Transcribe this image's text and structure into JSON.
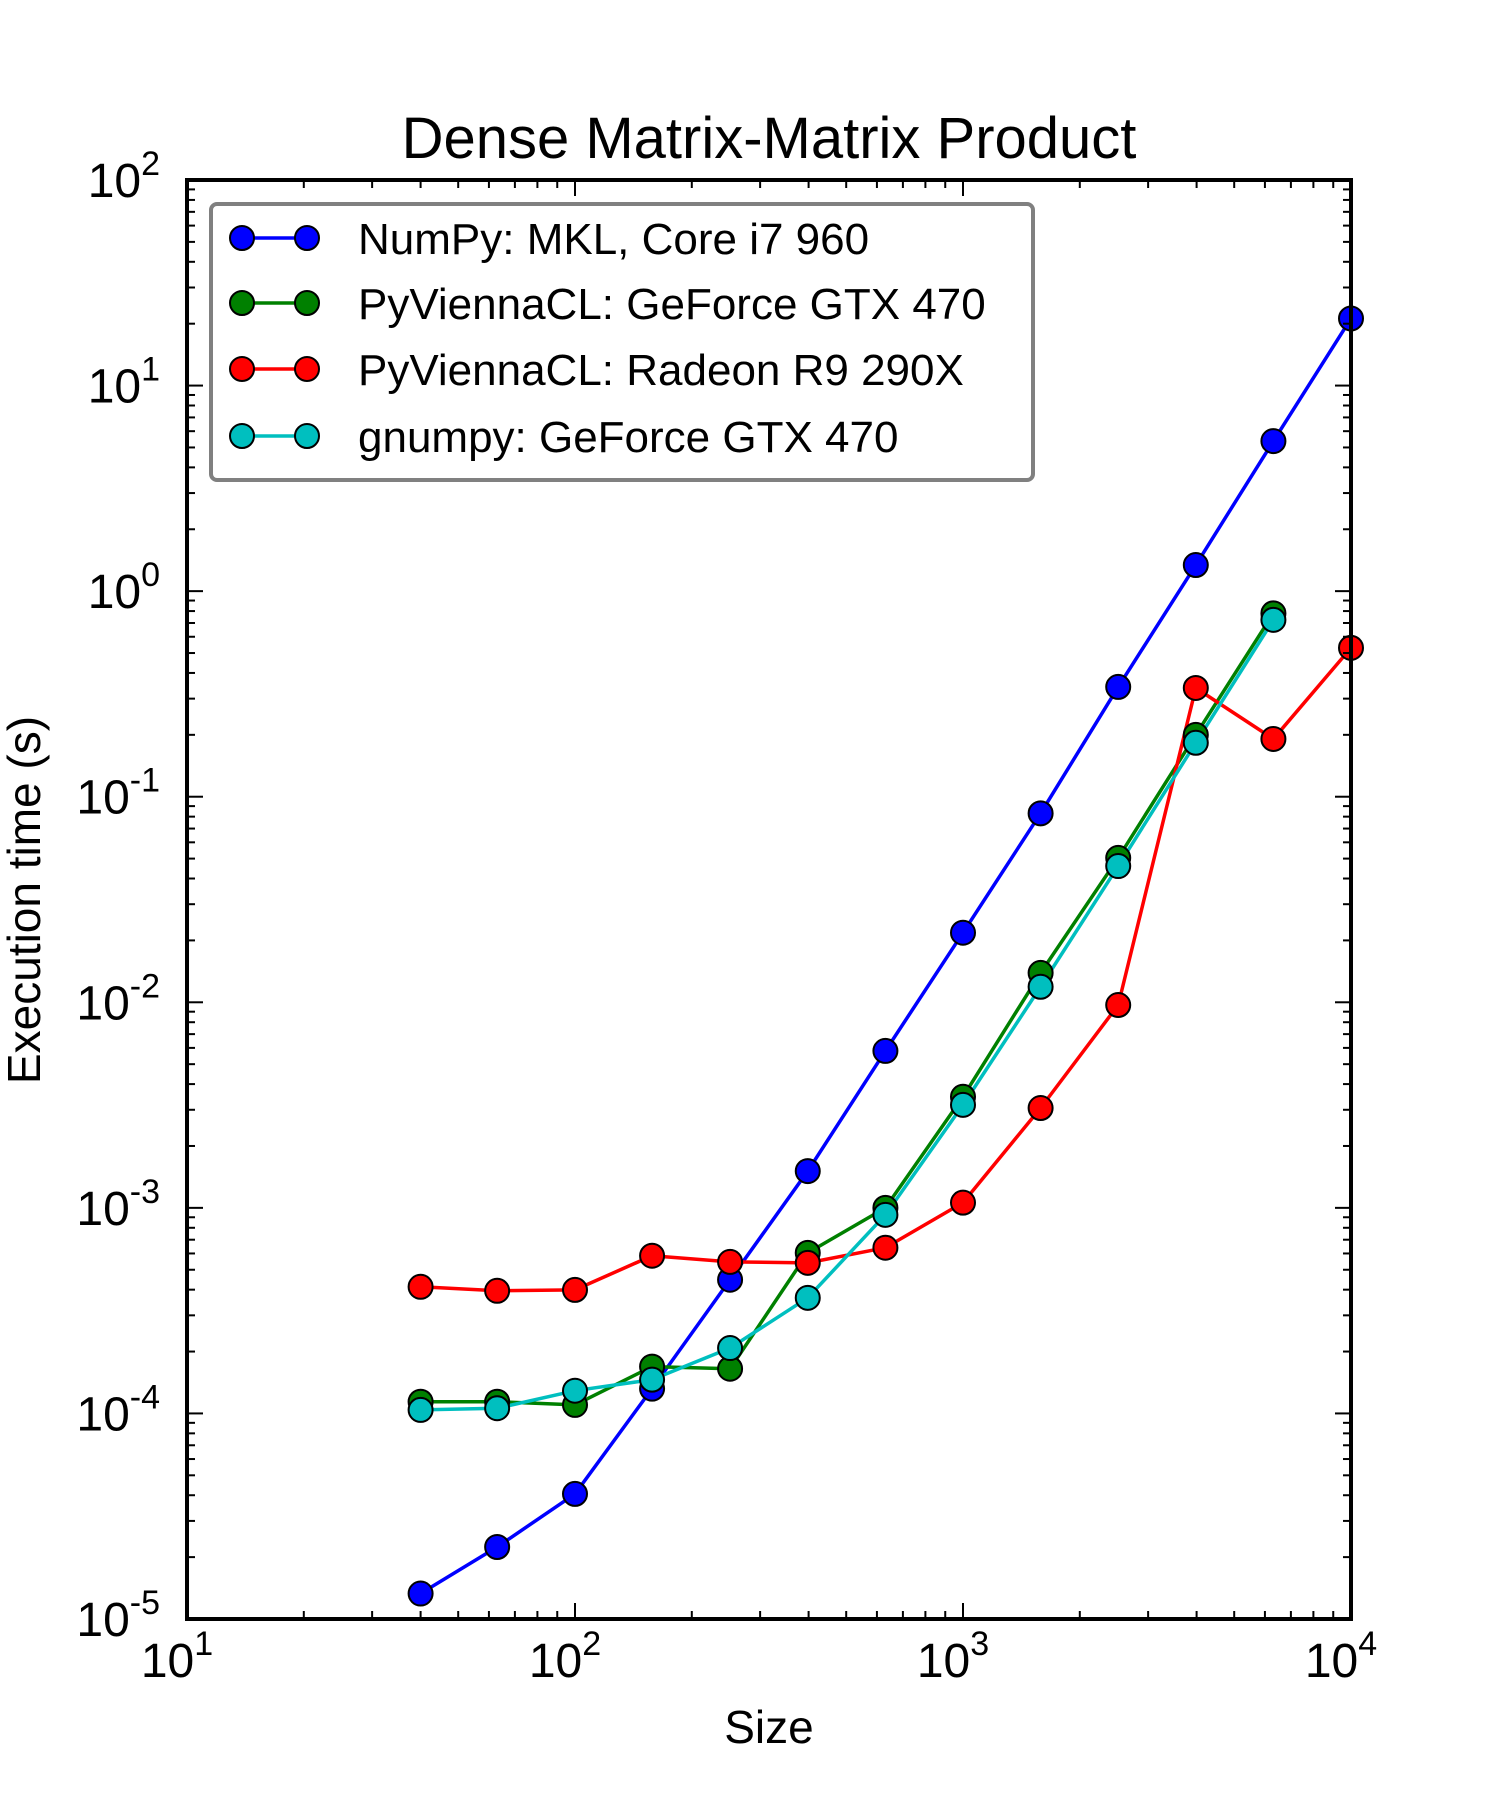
{
  "chart_data": {
    "type": "line",
    "title": "Dense Matrix-Matrix Product",
    "xlabel": "Size",
    "ylabel": "Execution time (s)",
    "xscale": "log",
    "yscale": "log",
    "xlim": [
      10,
      10000
    ],
    "ylim": [
      1e-05,
      100
    ],
    "grid": false,
    "legend_position": "top-left",
    "x_ticks": [
      {
        "base": "10",
        "exp": "1",
        "value": 10
      },
      {
        "base": "10",
        "exp": "2",
        "value": 100
      },
      {
        "base": "10",
        "exp": "3",
        "value": 1000
      },
      {
        "base": "10",
        "exp": "4",
        "value": 10000
      }
    ],
    "y_ticks": [
      {
        "base": "10",
        "exp": "-5",
        "value": 1e-05
      },
      {
        "base": "10",
        "exp": "-4",
        "value": 0.0001
      },
      {
        "base": "10",
        "exp": "-3",
        "value": 0.001
      },
      {
        "base": "10",
        "exp": "-2",
        "value": 0.01
      },
      {
        "base": "10",
        "exp": "-1",
        "value": 0.1
      },
      {
        "base": "10",
        "exp": "0",
        "value": 1
      },
      {
        "base": "10",
        "exp": "1",
        "value": 10
      },
      {
        "base": "10",
        "exp": "2",
        "value": 100
      }
    ],
    "x": [
      40,
      63,
      100,
      158,
      251,
      398,
      631,
      1000,
      1585,
      2512,
      3981,
      6310,
      10000
    ],
    "series": [
      {
        "name": "NumPy: MKL, Core i7 960",
        "color": "#0000ff",
        "values": [
          1.33e-05,
          2.24e-05,
          4.06e-05,
          0.000132,
          0.000447,
          0.00151,
          0.0058,
          0.0218,
          0.083,
          0.342,
          1.34,
          5.37,
          21.2
        ]
      },
      {
        "name": "PyViennaCL: GeForce GTX 470",
        "color": "#008000",
        "values": [
          0.000114,
          0.000114,
          0.00011,
          0.000169,
          0.000165,
          0.000604,
          0.001,
          0.00347,
          0.0139,
          0.0504,
          0.2,
          0.78,
          null
        ]
      },
      {
        "name": "PyViennaCL: Radeon R9 290X",
        "color": "#ff0000",
        "values": [
          0.000413,
          0.000395,
          0.000399,
          0.000585,
          0.000546,
          0.00054,
          0.00064,
          0.00106,
          0.00306,
          0.0097,
          0.338,
          0.191,
          0.53
        ]
      },
      {
        "name": "gnumpy: GeForce GTX 470",
        "color": "#00bfbf",
        "values": [
          0.000104,
          0.000106,
          0.000129,
          0.000146,
          0.000208,
          0.000365,
          0.000925,
          0.00317,
          0.0119,
          0.046,
          0.183,
          0.725,
          null
        ]
      }
    ]
  }
}
